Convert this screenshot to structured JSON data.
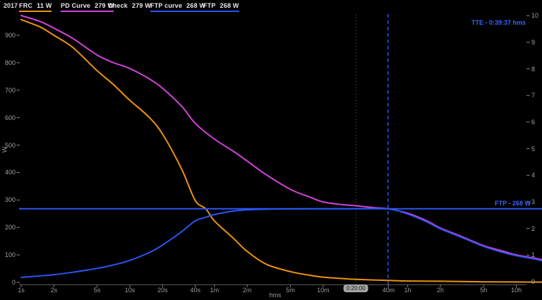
{
  "app": {
    "year": "2017"
  },
  "legend": {
    "items": [
      {
        "label": "FRC",
        "value": "11 W",
        "underline": "#ee9211",
        "x": 27
      },
      {
        "label": "PD Curve",
        "value": "279 W",
        "underline": "#d342d9",
        "x": 86
      },
      {
        "label": "Check",
        "value": "279 W",
        "underline": null,
        "x": 153
      },
      {
        "label": "FTP curve",
        "value": "268 W",
        "underline": "#2b55f2",
        "x": 213
      },
      {
        "label": "FTP",
        "value": "268 W",
        "underline": "#2b55f2",
        "x": 288
      }
    ]
  },
  "chart_data": {
    "type": "line",
    "title": "",
    "xlabel": "hms",
    "ylabel": "W",
    "x_scale": "log-seconds",
    "xlim_seconds": [
      1,
      62000
    ],
    "ylim_left": [
      0,
      975
    ],
    "ylim_right": [
      0,
      10
    ],
    "grid": "off",
    "background": "#000000",
    "x_ticks": [
      {
        "label": "1s",
        "sec": 1
      },
      {
        "label": "2s",
        "sec": 2
      },
      {
        "label": "5s",
        "sec": 5
      },
      {
        "label": "10s",
        "sec": 10
      },
      {
        "label": "20s",
        "sec": 20
      },
      {
        "label": "40s",
        "sec": 40
      },
      {
        "label": "1m",
        "sec": 60
      },
      {
        "label": "2m",
        "sec": 120
      },
      {
        "label": "5m",
        "sec": 300
      },
      {
        "label": "10m",
        "sec": 600
      },
      {
        "label": "0:20:00",
        "sec": 1200,
        "highlight": true
      },
      {
        "label": "40m",
        "sec": 2400
      },
      {
        "label": "1h",
        "sec": 3600
      },
      {
        "label": "2h",
        "sec": 7200
      },
      {
        "label": "5h",
        "sec": 18000
      },
      {
        "label": "10h",
        "sec": 36000
      }
    ],
    "y_ticks_left": [
      0,
      100,
      200,
      300,
      400,
      500,
      600,
      700,
      800,
      900
    ],
    "y_ticks_right": [
      0,
      1,
      2,
      3,
      4,
      5,
      6,
      7,
      8,
      9,
      10
    ],
    "series": [
      {
        "name": "PD Curve",
        "color": "#d342d9",
        "width": 2,
        "points": [
          [
            1,
            972
          ],
          [
            1.5,
            950
          ],
          [
            2,
            926
          ],
          [
            3,
            888
          ],
          [
            5,
            828
          ],
          [
            7,
            801
          ],
          [
            10,
            779
          ],
          [
            15,
            742
          ],
          [
            20,
            707
          ],
          [
            30,
            641
          ],
          [
            40,
            579
          ],
          [
            60,
            522
          ],
          [
            90,
            477
          ],
          [
            120,
            442
          ],
          [
            180,
            392
          ],
          [
            300,
            339
          ],
          [
            450,
            311
          ],
          [
            600,
            293
          ],
          [
            900,
            283
          ],
          [
            1200,
            279
          ],
          [
            1800,
            272
          ],
          [
            2377,
            268
          ],
          [
            3600,
            252
          ],
          [
            5400,
            224
          ],
          [
            7200,
            198
          ],
          [
            10800,
            170
          ],
          [
            18000,
            134
          ],
          [
            27000,
            114
          ],
          [
            36000,
            100
          ],
          [
            50000,
            90
          ],
          [
            62000,
            83
          ]
        ]
      },
      {
        "name": "FRC",
        "color": "#ee9211",
        "width": 2,
        "points": [
          [
            1,
            957
          ],
          [
            1.5,
            930
          ],
          [
            2,
            900
          ],
          [
            3,
            855
          ],
          [
            5,
            771
          ],
          [
            7,
            722
          ],
          [
            10,
            663
          ],
          [
            15,
            602
          ],
          [
            20,
            540
          ],
          [
            30,
            412
          ],
          [
            40,
            298
          ],
          [
            50,
            268
          ],
          [
            60,
            224
          ],
          [
            90,
            160
          ],
          [
            120,
            113
          ],
          [
            180,
            66
          ],
          [
            300,
            39
          ],
          [
            450,
            26
          ],
          [
            600,
            19
          ],
          [
            900,
            14
          ],
          [
            1200,
            11
          ],
          [
            2400,
            7
          ],
          [
            3600,
            5
          ],
          [
            7200,
            4
          ],
          [
            18000,
            2
          ],
          [
            62000,
            1
          ]
        ]
      },
      {
        "name": "FTP curve",
        "color": "#2b55f2",
        "width": 2,
        "points": [
          [
            1,
            18
          ],
          [
            2,
            28
          ],
          [
            3,
            37
          ],
          [
            5,
            51
          ],
          [
            7,
            63
          ],
          [
            10,
            80
          ],
          [
            15,
            108
          ],
          [
            20,
            136
          ],
          [
            30,
            185
          ],
          [
            40,
            224
          ],
          [
            50,
            237
          ],
          [
            60,
            247
          ],
          [
            90,
            260
          ],
          [
            120,
            264
          ],
          [
            180,
            266.5
          ],
          [
            300,
            267.5
          ],
          [
            600,
            268
          ],
          [
            1200,
            268
          ],
          [
            2377,
            268
          ],
          [
            3600,
            249
          ],
          [
            5400,
            220
          ],
          [
            7200,
            195
          ],
          [
            10800,
            167
          ],
          [
            18000,
            131
          ],
          [
            27000,
            109
          ],
          [
            36000,
            97
          ],
          [
            50000,
            87
          ],
          [
            62000,
            79
          ]
        ]
      },
      {
        "name": "FTP",
        "color": "#2b55f2",
        "width": 2,
        "style": "hline",
        "value": 268
      }
    ],
    "markers": {
      "tte_seconds": 2377,
      "tte_label": "TTE - 0:39:37 hms",
      "cursor_seconds": 1200,
      "ftp_line_label": "FTP - 268 W",
      "tte_line_color": "#2b55f2",
      "cursor_line_color": "#4f4f4f"
    }
  }
}
